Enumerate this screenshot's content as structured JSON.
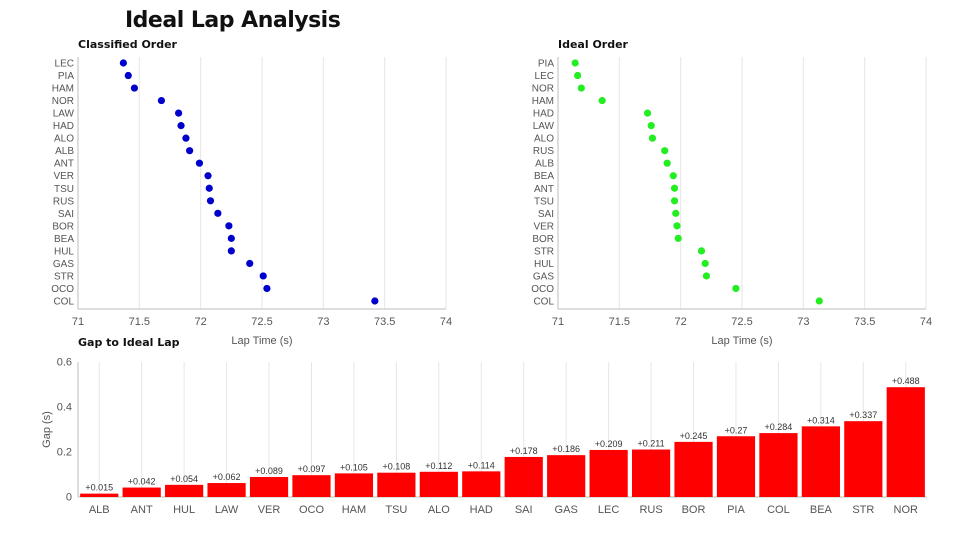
{
  "page": {
    "title": "Ideal Lap Analysis"
  },
  "chart_data": [
    {
      "type": "scatter",
      "title": "Classified Order",
      "xlabel": "Lap Time (s)",
      "ylabel": "",
      "xlim": [
        71,
        74
      ],
      "xticks": [
        "71",
        "71.5",
        "72",
        "72.5",
        "73",
        "73.5",
        "74"
      ],
      "categories": [
        "LEC",
        "PIA",
        "HAM",
        "NOR",
        "LAW",
        "HAD",
        "ALO",
        "ALB",
        "ANT",
        "VER",
        "TSU",
        "RUS",
        "SAI",
        "BOR",
        "BEA",
        "HUL",
        "GAS",
        "STR",
        "OCO",
        "COL"
      ],
      "values": [
        71.37,
        71.41,
        71.46,
        71.68,
        71.82,
        71.84,
        71.88,
        71.91,
        71.99,
        72.06,
        72.07,
        72.08,
        72.14,
        72.23,
        72.25,
        72.25,
        72.4,
        72.51,
        72.54,
        73.42
      ],
      "color": "#0000cc",
      "grid": true
    },
    {
      "type": "scatter",
      "title": "Ideal Order",
      "xlabel": "Lap Time (s)",
      "ylabel": "",
      "xlim": [
        71,
        74
      ],
      "xticks": [
        "71",
        "71.5",
        "72",
        "72.5",
        "73",
        "73.5",
        "74"
      ],
      "categories": [
        "PIA",
        "LEC",
        "NOR",
        "HAM",
        "HAD",
        "LAW",
        "ALO",
        "RUS",
        "ALB",
        "BEA",
        "ANT",
        "TSU",
        "SAI",
        "VER",
        "BOR",
        "STR",
        "HUL",
        "GAS",
        "OCO",
        "COL"
      ],
      "values": [
        71.14,
        71.16,
        71.19,
        71.36,
        71.73,
        71.76,
        71.77,
        71.87,
        71.89,
        71.94,
        71.95,
        71.95,
        71.96,
        71.97,
        71.98,
        72.17,
        72.2,
        72.21,
        72.45,
        73.13
      ],
      "color": "#22ee22",
      "grid": true
    },
    {
      "type": "bar",
      "title": "Gap to Ideal Lap",
      "xlabel": "",
      "ylabel": "Gap (s)",
      "ylim": [
        0,
        0.6
      ],
      "yticks": [
        "0",
        "0.2",
        "0.4",
        "0.6"
      ],
      "categories": [
        "ALB",
        "ANT",
        "HUL",
        "LAW",
        "VER",
        "OCO",
        "HAM",
        "TSU",
        "ALO",
        "HAD",
        "SAI",
        "GAS",
        "LEC",
        "RUS",
        "BOR",
        "PIA",
        "COL",
        "BEA",
        "STR",
        "NOR"
      ],
      "values": [
        0.015,
        0.042,
        0.054,
        0.062,
        0.089,
        0.097,
        0.105,
        0.108,
        0.112,
        0.114,
        0.178,
        0.186,
        0.209,
        0.211,
        0.245,
        0.27,
        0.284,
        0.314,
        0.337,
        0.488
      ],
      "data_labels": [
        "+0.015",
        "+0.042",
        "+0.054",
        "+0.062",
        "+0.089",
        "+0.097",
        "+0.105",
        "+0.108",
        "+0.112",
        "+0.114",
        "+0.178",
        "+0.186",
        "+0.209",
        "+0.211",
        "+0.245",
        "+0.27",
        "+0.284",
        "+0.314",
        "+0.337",
        "+0.488"
      ],
      "color": "#ff0000",
      "grid": true
    }
  ]
}
